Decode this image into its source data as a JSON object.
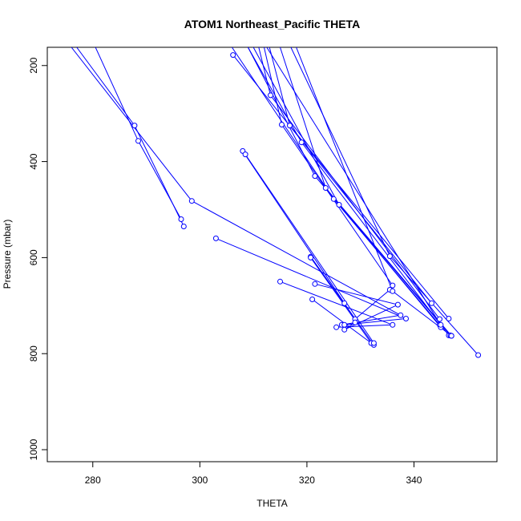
{
  "chart_data": {
    "type": "line",
    "title": "ATOM1 Northeast_Pacific THETA",
    "xlabel": "THETA",
    "ylabel": "Pressure (mbar)",
    "xlim": [
      271.5,
      355.5
    ],
    "ylim": [
      1025,
      162
    ],
    "y_inverted": true,
    "xticks": [
      280,
      300,
      320,
      340
    ],
    "yticks": [
      200,
      400,
      600,
      800,
      1000
    ],
    "grid": false,
    "legend": "none",
    "line_color": "#0000ff",
    "marker": "open-circle",
    "series": [
      {
        "x": [
          277,
          287.8,
          297
        ],
        "y": [
          162,
          325,
          535
        ]
      },
      {
        "x": [
          280.5,
          288.5,
          296.5
        ],
        "y": [
          162,
          357,
          520
        ]
      },
      {
        "x": [
          276,
          298.5,
          337.5,
          326.5
        ],
        "y": [
          162,
          482,
          720,
          740
        ]
      },
      {
        "x": [
          303,
          338.5,
          327
        ],
        "y": [
          560,
          727,
          740
        ]
      },
      {
        "x": [
          315,
          336,
          325.5
        ],
        "y": [
          650,
          740,
          745
        ]
      },
      {
        "x": [
          308,
          327,
          329,
          335.5
        ],
        "y": [
          378,
          695,
          728,
          667
        ]
      },
      {
        "x": [
          321.5,
          337,
          327,
          329
        ],
        "y": [
          655,
          698,
          750,
          735
        ]
      },
      {
        "x": [
          321,
          332.5,
          320.7
        ],
        "y": [
          687,
          782,
          598
        ]
      },
      {
        "x": [
          320.7,
          332
        ],
        "y": [
          600,
          778
        ]
      },
      {
        "x": [
          308.5,
          332.5
        ],
        "y": [
          385,
          778
        ]
      },
      {
        "x": [
          306,
          325,
          344.8
        ],
        "y": [
          162,
          478,
          740
        ]
      },
      {
        "x": [
          306.2,
          343.3
        ],
        "y": [
          178,
          695
        ]
      },
      {
        "x": [
          309,
          319,
          346.5
        ],
        "y": [
          162,
          360,
          762
        ]
      },
      {
        "x": [
          309,
          321.5,
          346.8
        ],
        "y": [
          162,
          430,
          762
        ]
      },
      {
        "x": [
          310,
          326,
          345
        ],
        "y": [
          162,
          490,
          745
        ]
      },
      {
        "x": [
          311,
          313.2,
          344.8
        ],
        "y": [
          162,
          262,
          728
        ]
      },
      {
        "x": [
          312,
          315.3,
          336
        ],
        "y": [
          162,
          323,
          658
        ]
      },
      {
        "x": [
          313,
          316.8,
          346.5
        ],
        "y": [
          162,
          325,
          727
        ]
      },
      {
        "x": [
          315,
          323.5,
          347
        ],
        "y": [
          162,
          455,
          763
        ]
      },
      {
        "x": [
          317,
          335.5,
          352
        ],
        "y": [
          162,
          597,
          803
        ]
      },
      {
        "x": [
          312.5,
          345
        ],
        "y": [
          162,
          740
        ]
      },
      {
        "x": [
          318,
          336,
          347
        ],
        "y": [
          162,
          670,
          763
        ]
      }
    ]
  }
}
